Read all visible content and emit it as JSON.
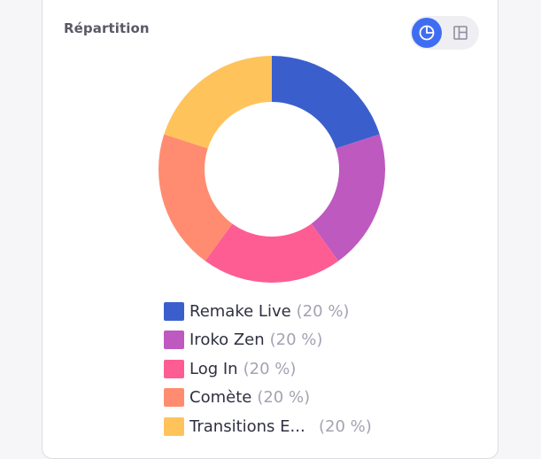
{
  "card": {
    "title": "Répartition"
  },
  "view_toggle": {
    "active": "chart",
    "chart_icon": "pie-chart-icon",
    "table_icon": "layout-panels-icon"
  },
  "colors": {
    "accent": "#3f6df2"
  },
  "chart_data": {
    "type": "pie",
    "variant": "donut",
    "legend_position": "bottom",
    "categories": [
      "Remake Live",
      "Iroko Zen",
      "Log In",
      "Comète",
      "Transitions E..."
    ],
    "values": [
      20,
      20,
      20,
      20,
      20
    ],
    "colors": [
      "#3a5fcd",
      "#be59bf",
      "#fd5d93",
      "#ff8c70",
      "#ffc35c"
    ]
  },
  "legend": {
    "items": [
      {
        "label": "Remake Live",
        "pct": "(20 %)"
      },
      {
        "label": "Iroko Zen",
        "pct": "(20 %)"
      },
      {
        "label": "Log In",
        "pct": "(20 %)"
      },
      {
        "label": "Comète",
        "pct": "(20 %)"
      },
      {
        "label": "Transitions E...",
        "pct": "(20 %)"
      }
    ]
  }
}
